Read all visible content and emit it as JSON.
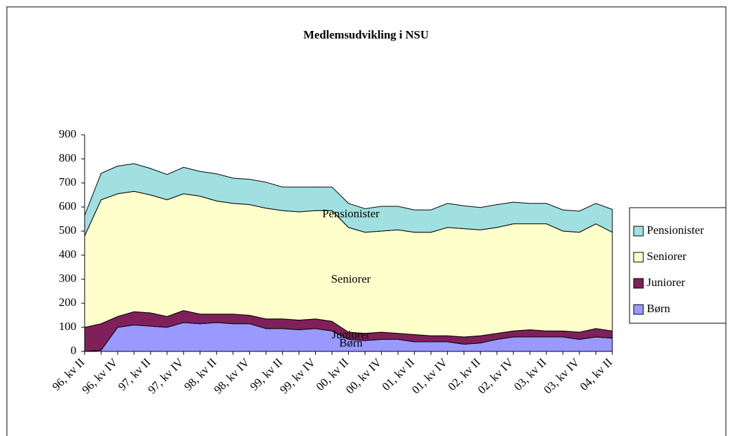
{
  "chart_data": {
    "type": "stacked_area",
    "title": "Medlemsudvikling i NSU",
    "categories": [
      "96, kv II",
      null,
      "96, kv IV",
      null,
      "97, kv II",
      null,
      "97, kv IV",
      null,
      "98, kv II",
      null,
      "98, kv IV",
      null,
      "99, kv II",
      null,
      "99, kv IV",
      null,
      "00, kv II",
      null,
      "00, kv IV",
      null,
      "01, kv II",
      null,
      "01, kv IV",
      null,
      "02, kv II",
      null,
      "02, kv IV",
      null,
      "03, kv II",
      null,
      "03, kv IV",
      null,
      "04, kv II"
    ],
    "series": [
      {
        "name": "Børn",
        "color": "#9999ff",
        "values": [
          0,
          5,
          100,
          110,
          105,
          100,
          120,
          115,
          120,
          115,
          115,
          95,
          95,
          90,
          95,
          85,
          50,
          45,
          50,
          50,
          40,
          40,
          40,
          30,
          35,
          50,
          60,
          60,
          60,
          60,
          50,
          60,
          55
        ]
      },
      {
        "name": "Juniorer",
        "color": "#80205a",
        "values": [
          100,
          110,
          45,
          55,
          55,
          45,
          50,
          40,
          35,
          40,
          35,
          40,
          40,
          40,
          40,
          40,
          30,
          30,
          30,
          25,
          30,
          25,
          25,
          30,
          30,
          25,
          25,
          30,
          25,
          25,
          30,
          35,
          30
        ]
      },
      {
        "name": "Seniorer",
        "color": "#ffffcc",
        "values": [
          380,
          515,
          510,
          500,
          490,
          485,
          485,
          490,
          470,
          460,
          460,
          460,
          450,
          450,
          450,
          460,
          435,
          420,
          420,
          430,
          425,
          430,
          450,
          450,
          440,
          440,
          445,
          440,
          445,
          415,
          415,
          435,
          410
        ]
      },
      {
        "name": "Pensionister",
        "color": "#a0e0e0",
        "values": [
          85,
          110,
          115,
          115,
          110,
          105,
          110,
          103,
          113,
          105,
          105,
          108,
          98,
          103,
          98,
          98,
          100,
          98,
          103,
          98,
          93,
          93,
          100,
          95,
          93,
          95,
          90,
          85,
          85,
          88,
          88,
          85,
          95
        ]
      }
    ],
    "ylim": [
      0,
      900
    ],
    "yticks": [
      0,
      100,
      200,
      300,
      400,
      500,
      600,
      700,
      800,
      900
    ],
    "legend": "right"
  }
}
